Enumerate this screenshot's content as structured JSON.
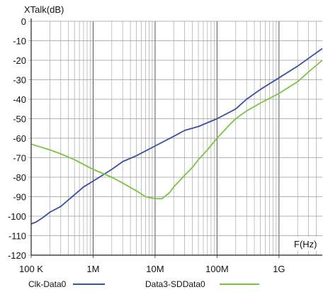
{
  "chart_data": {
    "type": "line",
    "title": "",
    "ylabel": "XTalk(dB)",
    "xlabel": "F(Hz)",
    "x_scale": "log",
    "xlim": [
      100000,
      5000000000
    ],
    "ylim": [
      -120,
      0
    ],
    "grid": true,
    "x_ticks": [
      {
        "value": 100000,
        "label": "100 K"
      },
      {
        "value": 1000000,
        "label": "1M"
      },
      {
        "value": 10000000,
        "label": "10M"
      },
      {
        "value": 100000000,
        "label": "100M"
      },
      {
        "value": 1000000000,
        "label": "1G"
      }
    ],
    "y_ticks": [
      {
        "value": 0,
        "label": "0"
      },
      {
        "value": -10,
        "label": "-10"
      },
      {
        "value": -20,
        "label": "-20"
      },
      {
        "value": -30,
        "label": "-30"
      },
      {
        "value": -40,
        "label": "-40"
      },
      {
        "value": -50,
        "label": "-50"
      },
      {
        "value": -60,
        "label": "-60"
      },
      {
        "value": -70,
        "label": "-70"
      },
      {
        "value": -80,
        "label": "-80"
      },
      {
        "value": -90,
        "label": "-90"
      },
      {
        "value": -100,
        "label": "-100"
      },
      {
        "value": -110,
        "label": "-110"
      },
      {
        "value": -120,
        "label": "-120"
      }
    ],
    "legend_position": "bottom",
    "series": [
      {
        "name": "Clk-Data0",
        "color": "#3a4fa0",
        "points": [
          [
            100000,
            -104
          ],
          [
            120000,
            -103
          ],
          [
            150000,
            -101
          ],
          [
            200000,
            -98
          ],
          [
            300000,
            -95
          ],
          [
            500000,
            -89
          ],
          [
            700000,
            -85
          ],
          [
            1000000,
            -82
          ],
          [
            2000000,
            -76
          ],
          [
            3000000,
            -72
          ],
          [
            5000000,
            -69
          ],
          [
            10000000,
            -64
          ],
          [
            20000000,
            -59
          ],
          [
            30000000,
            -56
          ],
          [
            50000000,
            -54
          ],
          [
            100000000,
            -50
          ],
          [
            200000000,
            -45
          ],
          [
            300000000,
            -40
          ],
          [
            500000000,
            -35
          ],
          [
            1000000000,
            -29
          ],
          [
            2000000000,
            -23
          ],
          [
            3000000000,
            -19
          ],
          [
            5000000000,
            -14
          ]
        ]
      },
      {
        "name": "Data3-SDData0",
        "color": "#7dc242",
        "points": [
          [
            100000,
            -63
          ],
          [
            200000,
            -66
          ],
          [
            300000,
            -68
          ],
          [
            500000,
            -71
          ],
          [
            1000000,
            -76
          ],
          [
            2000000,
            -80
          ],
          [
            3000000,
            -83
          ],
          [
            5000000,
            -87
          ],
          [
            7000000,
            -90
          ],
          [
            10000000,
            -91
          ],
          [
            13000000,
            -91
          ],
          [
            17000000,
            -88
          ],
          [
            20000000,
            -85
          ],
          [
            30000000,
            -79
          ],
          [
            40000000,
            -75
          ],
          [
            50000000,
            -71
          ],
          [
            70000000,
            -66
          ],
          [
            100000000,
            -60
          ],
          [
            150000000,
            -54
          ],
          [
            200000000,
            -50
          ],
          [
            300000000,
            -46
          ],
          [
            500000000,
            -42
          ],
          [
            1000000000,
            -37
          ],
          [
            2000000000,
            -31
          ],
          [
            3000000000,
            -26
          ],
          [
            5000000000,
            -20
          ]
        ]
      }
    ]
  }
}
